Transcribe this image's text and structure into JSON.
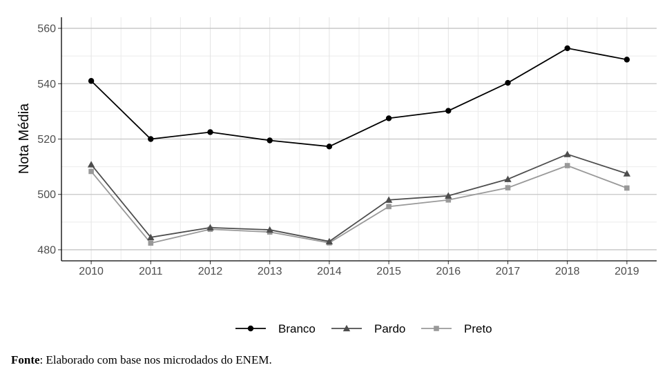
{
  "chart_data": {
    "type": "line",
    "categories": [
      "2010",
      "2011",
      "2012",
      "2013",
      "2014",
      "2015",
      "2016",
      "2017",
      "2018",
      "2019"
    ],
    "series": [
      {
        "name": "Branco",
        "color": "#000000",
        "marker": "circle",
        "values": [
          541,
          520,
          522.5,
          519.5,
          517.3,
          527.5,
          530.2,
          540.3,
          552.8,
          548.7
        ]
      },
      {
        "name": "Pardo",
        "color": "#4d4d4d",
        "marker": "triangle",
        "values": [
          510.8,
          484.5,
          488,
          487.2,
          483,
          498,
          499.5,
          505.5,
          514.5,
          507.5
        ]
      },
      {
        "name": "Preto",
        "color": "#999999",
        "marker": "square",
        "values": [
          508.3,
          482.4,
          487.4,
          486.4,
          482.5,
          495.6,
          498,
          502.4,
          510.4,
          502.3
        ]
      }
    ],
    "title": "",
    "xlabel": "",
    "ylabel": "Nota Média",
    "ylim": [
      476,
      564
    ],
    "yticks": [
      480,
      500,
      520,
      540,
      560
    ],
    "grid": true,
    "legend_position": "bottom"
  },
  "source": {
    "label": "Fonte",
    "text": ": Elaborado com base nos microdados do ENEM."
  }
}
